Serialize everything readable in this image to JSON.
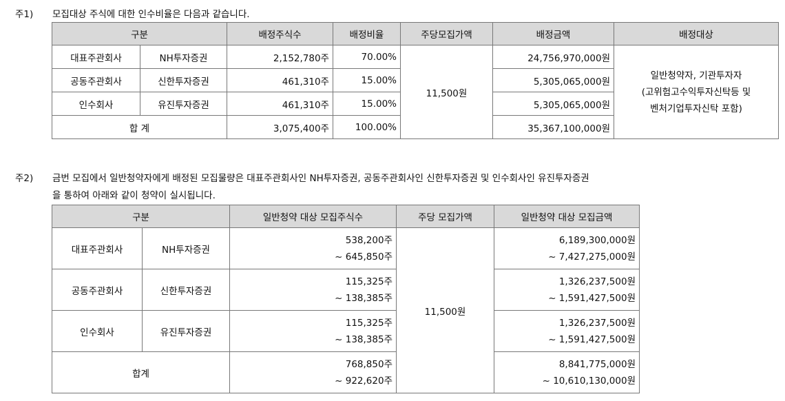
{
  "note1": {
    "label": "주1)",
    "text": "모집대상 주식에 대한 인수비율은 다음과 같습니다."
  },
  "table1": {
    "headers": [
      "구분",
      "배정주식수",
      "배정비율",
      "주당모집가액",
      "배정금액",
      "배정대상"
    ],
    "rows": [
      {
        "role": "대표주관회사",
        "company": "NH투자증권",
        "shares": "2,152,780주",
        "ratio": "70.00%",
        "amount": "24,756,970,000원"
      },
      {
        "role": "공동주관회사",
        "company": "신한투자증권",
        "shares": "461,310주",
        "ratio": "15.00%",
        "amount": "5,305,065,000원"
      },
      {
        "role": "인수회사",
        "company": "유진투자증권",
        "shares": "461,310주",
        "ratio": "15.00%",
        "amount": "5,305,065,000원"
      }
    ],
    "total": {
      "label": "합 계",
      "shares": "3,075,400주",
      "ratio": "100.00%",
      "amount": "35,367,100,000원"
    },
    "price": "11,500원",
    "target_lines": [
      "일반청약자, 기관투자자",
      "(고위험고수익투자신탁등 및",
      "벤처기업투자신탁 포함)"
    ]
  },
  "note2": {
    "label": "주2)",
    "line1": "금번 모집에서 일반청약자에게 배정된 모집물량은 대표주관회사인 NH투자증권, 공동주관회사인 신한투자증권 및 인수회사인 유진투자증권",
    "line2": "을 통하여 아래와 같이 청약이 실시됩니다."
  },
  "table2": {
    "headers": [
      "구분",
      "일반청약 대상 모집주식수",
      "주당 모집가액",
      "일반청약 대상 모집금액"
    ],
    "rows": [
      {
        "role": "대표주관회사",
        "company": "NH투자증권",
        "shares_min": "538,200주",
        "shares_max": "~ 645,850주",
        "amount_min": "6,189,300,000원",
        "amount_max": "~ 7,427,275,000원"
      },
      {
        "role": "공동주관회사",
        "company": "신한투자증권",
        "shares_min": "115,325주",
        "shares_max": "~ 138,385주",
        "amount_min": "1,326,237,500원",
        "amount_max": "~ 1,591,427,500원"
      },
      {
        "role": "인수회사",
        "company": "유진투자증권",
        "shares_min": "115,325주",
        "shares_max": "~ 138,385주",
        "amount_min": "1,326,237,500원",
        "amount_max": "~ 1,591,427,500원"
      }
    ],
    "total": {
      "label": "합계",
      "shares_min": "768,850주",
      "shares_max": "~ 922,620주",
      "amount_min": "8,841,775,000원",
      "amount_max": "~ 10,610,130,000원"
    },
    "price": "11,500원"
  }
}
